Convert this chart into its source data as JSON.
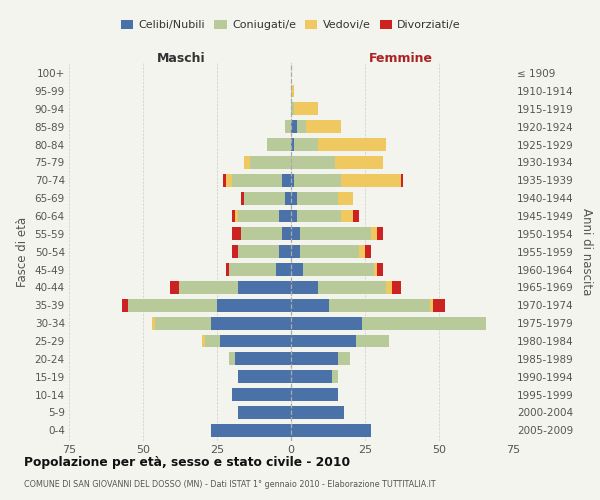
{
  "age_groups": [
    "0-4",
    "5-9",
    "10-14",
    "15-19",
    "20-24",
    "25-29",
    "30-34",
    "35-39",
    "40-44",
    "45-49",
    "50-54",
    "55-59",
    "60-64",
    "65-69",
    "70-74",
    "75-79",
    "80-84",
    "85-89",
    "90-94",
    "95-99",
    "100+"
  ],
  "birth_years": [
    "2005-2009",
    "2000-2004",
    "1995-1999",
    "1990-1994",
    "1985-1989",
    "1980-1984",
    "1975-1979",
    "1970-1974",
    "1965-1969",
    "1960-1964",
    "1955-1959",
    "1950-1954",
    "1945-1949",
    "1940-1944",
    "1935-1939",
    "1930-1934",
    "1925-1929",
    "1920-1924",
    "1915-1919",
    "1910-1914",
    "≤ 1909"
  ],
  "maschi": {
    "celibi": [
      27,
      18,
      20,
      18,
      19,
      24,
      27,
      25,
      18,
      5,
      4,
      3,
      4,
      2,
      3,
      0,
      0,
      0,
      0,
      0,
      0
    ],
    "coniugati": [
      0,
      0,
      0,
      0,
      2,
      5,
      19,
      30,
      20,
      16,
      14,
      14,
      14,
      14,
      17,
      14,
      8,
      2,
      0,
      0,
      0
    ],
    "vedovi": [
      0,
      0,
      0,
      0,
      0,
      1,
      1,
      0,
      0,
      0,
      0,
      0,
      1,
      0,
      2,
      2,
      0,
      0,
      0,
      0,
      0
    ],
    "divorziati": [
      0,
      0,
      0,
      0,
      0,
      0,
      0,
      2,
      3,
      1,
      2,
      3,
      1,
      1,
      1,
      0,
      0,
      0,
      0,
      0,
      0
    ]
  },
  "femmine": {
    "nubili": [
      27,
      18,
      16,
      14,
      16,
      22,
      24,
      13,
      9,
      4,
      3,
      3,
      2,
      2,
      1,
      0,
      1,
      2,
      0,
      0,
      0
    ],
    "coniugate": [
      0,
      0,
      0,
      2,
      4,
      11,
      42,
      34,
      23,
      24,
      20,
      24,
      15,
      14,
      16,
      15,
      8,
      3,
      1,
      0,
      0
    ],
    "vedove": [
      0,
      0,
      0,
      0,
      0,
      0,
      0,
      1,
      2,
      1,
      2,
      2,
      4,
      5,
      20,
      16,
      23,
      12,
      8,
      1,
      0
    ],
    "divorziate": [
      0,
      0,
      0,
      0,
      0,
      0,
      0,
      4,
      3,
      2,
      2,
      2,
      2,
      0,
      1,
      0,
      0,
      0,
      0,
      0,
      0
    ]
  },
  "colors": {
    "celibi": "#4a72a8",
    "coniugati": "#b8c99a",
    "vedovi": "#f0c860",
    "divorziati": "#cc2222"
  },
  "xlim": 75,
  "title": "Popolazione per età, sesso e stato civile - 2010",
  "subtitle": "COMUNE DI SAN GIOVANNI DEL DOSSO (MN) - Dati ISTAT 1° gennaio 2010 - Elaborazione TUTTITALIA.IT",
  "ylabel_left": "Fasce di età",
  "ylabel_right": "Anni di nascita",
  "xlabel_left": "Maschi",
  "xlabel_right": "Femmine",
  "bg_color": "#f4f4ef",
  "legend_labels": [
    "Celibi/Nubili",
    "Coniugati/e",
    "Vedovi/e",
    "Divorziati/e"
  ]
}
